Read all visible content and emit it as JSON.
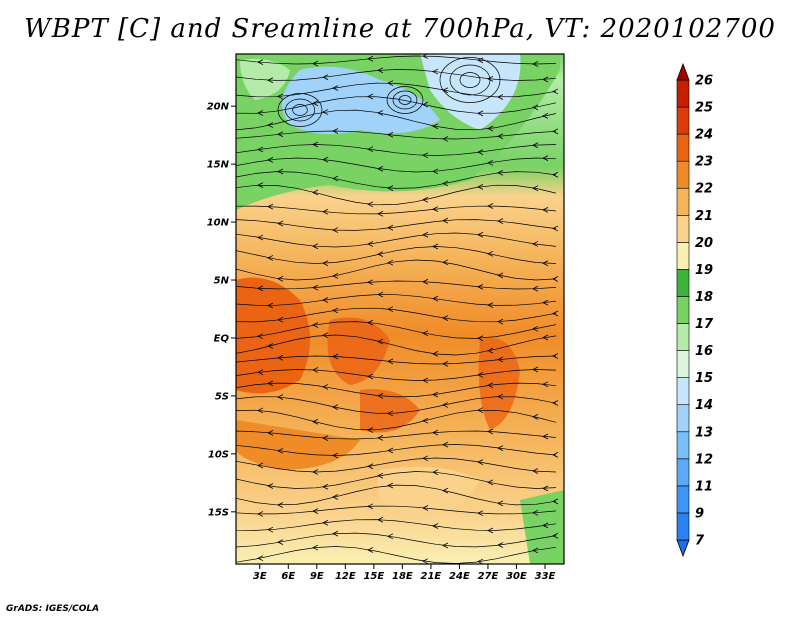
{
  "title": "WBPT [C] and Sreamline at 700hPa, VT: 2020102700",
  "credit": "GrADS: IGES/COLA",
  "map": {
    "lat_labels": [
      "20N",
      "15N",
      "10N",
      "5N",
      "EQ",
      "5S",
      "10S",
      "15S"
    ],
    "lat_values": [
      20,
      15,
      10,
      5,
      0,
      -5,
      -10,
      -15
    ],
    "lon_labels": [
      "3E",
      "6E",
      "9E",
      "12E",
      "15E",
      "18E",
      "21E",
      "24E",
      "27E",
      "30E",
      "33E"
    ],
    "lon_values": [
      3,
      6,
      9,
      12,
      15,
      18,
      21,
      24,
      27,
      30,
      33
    ],
    "lon_range": [
      0.5,
      35
    ],
    "lat_range": [
      -19.5,
      24.5
    ]
  },
  "colorbar": {
    "labels": [
      "7",
      "9",
      "11",
      "12",
      "13",
      "14",
      "15",
      "16",
      "17",
      "18",
      "19",
      "20",
      "21",
      "22",
      "23",
      "24",
      "25",
      "26"
    ],
    "colors": [
      "#1e6ee6",
      "#2a82f0",
      "#3c96f5",
      "#5aaaf8",
      "#78bef8",
      "#a0d2fa",
      "#c8e6fb",
      "#dcf5dc",
      "#b4ebaa",
      "#78d264",
      "#3cb43c",
      "#faf0b4",
      "#fad28c",
      "#f5b45a",
      "#f08c28",
      "#eb6414",
      "#dc3c0a",
      "#c81e00",
      "#a00000"
    ]
  }
}
